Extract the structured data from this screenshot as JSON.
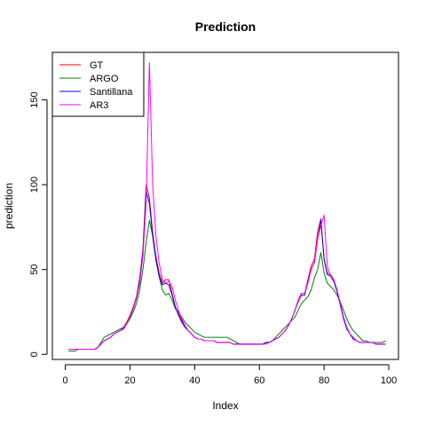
{
  "chart_data": {
    "type": "line",
    "title": "Prediction",
    "xlabel": "Index",
    "ylabel": "prediction",
    "xlim": [
      -4,
      103
    ],
    "ylim": [
      -3,
      178
    ],
    "xticks": [
      0,
      20,
      40,
      60,
      80,
      100
    ],
    "yticks": [
      0,
      50,
      100,
      150
    ],
    "legend": "top-left",
    "x": [
      1,
      2,
      3,
      4,
      5,
      6,
      7,
      8,
      9,
      10,
      11,
      12,
      13,
      14,
      15,
      16,
      17,
      18,
      19,
      20,
      21,
      22,
      23,
      24,
      25,
      26,
      27,
      28,
      29,
      30,
      31,
      32,
      33,
      34,
      35,
      36,
      37,
      38,
      39,
      40,
      41,
      42,
      43,
      44,
      45,
      46,
      47,
      48,
      49,
      50,
      51,
      52,
      53,
      54,
      55,
      56,
      57,
      58,
      59,
      60,
      61,
      62,
      63,
      64,
      65,
      66,
      67,
      68,
      69,
      70,
      71,
      72,
      73,
      74,
      75,
      76,
      77,
      78,
      79,
      80,
      81,
      82,
      83,
      84,
      85,
      86,
      87,
      88,
      89,
      90,
      91,
      92,
      93,
      94,
      95,
      96,
      97,
      98,
      99
    ],
    "series": [
      {
        "name": "GT",
        "color": "#ff0000",
        "values": [
          3,
          3,
          3,
          3,
          3,
          3,
          3,
          3,
          3,
          4,
          6,
          8,
          9,
          10,
          12,
          13,
          14,
          16,
          19,
          23,
          28,
          34,
          45,
          62,
          100,
          92,
          72,
          58,
          48,
          42,
          44,
          44,
          36,
          28,
          24,
          20,
          16,
          14,
          12,
          10,
          9,
          9,
          8,
          8,
          8,
          8,
          7,
          7,
          7,
          7,
          7,
          6,
          6,
          6,
          6,
          6,
          6,
          6,
          6,
          6,
          6,
          7,
          7,
          8,
          9,
          10,
          12,
          14,
          17,
          21,
          26,
          32,
          36,
          36,
          44,
          52,
          56,
          72,
          80,
          56,
          48,
          47,
          44,
          38,
          30,
          22,
          16,
          12,
          10,
          8,
          7,
          7,
          7,
          7,
          7,
          6,
          6,
          6,
          6
        ]
      },
      {
        "name": "ARGO",
        "color": "#008000",
        "values": [
          2,
          2,
          2,
          3,
          3,
          3,
          3,
          3,
          3,
          4,
          7,
          10,
          11,
          12,
          13,
          14,
          15,
          16,
          18,
          21,
          25,
          30,
          38,
          50,
          66,
          79,
          70,
          56,
          46,
          38,
          35,
          36,
          32,
          27,
          25,
          22,
          19,
          17,
          15,
          13,
          12,
          11,
          10,
          10,
          10,
          10,
          10,
          10,
          10,
          10,
          9,
          8,
          7,
          6,
          6,
          6,
          6,
          6,
          6,
          6,
          6,
          7,
          7,
          8,
          10,
          12,
          14,
          16,
          18,
          20,
          22,
          26,
          30,
          32,
          34,
          38,
          45,
          50,
          60,
          48,
          42,
          40,
          38,
          35,
          31,
          26,
          21,
          17,
          14,
          12,
          10,
          8,
          8,
          7,
          7,
          7,
          7,
          7,
          8
        ]
      },
      {
        "name": "Santillana",
        "color": "#0000ff",
        "values": [
          3,
          3,
          3,
          3,
          3,
          3,
          3,
          3,
          3,
          4,
          6,
          8,
          9,
          10,
          12,
          13,
          14,
          15,
          18,
          22,
          27,
          33,
          44,
          60,
          96,
          89,
          70,
          56,
          46,
          41,
          42,
          41,
          35,
          28,
          23,
          19,
          16,
          14,
          12,
          10,
          9,
          9,
          8,
          8,
          8,
          8,
          7,
          7,
          7,
          7,
          7,
          6,
          6,
          6,
          6,
          6,
          6,
          6,
          6,
          6,
          6,
          7,
          7,
          8,
          9,
          10,
          12,
          14,
          17,
          21,
          26,
          31,
          35,
          35,
          43,
          50,
          54,
          68,
          79,
          56,
          47,
          46,
          43,
          37,
          29,
          21,
          15,
          12,
          9,
          8,
          7,
          7,
          7,
          7,
          7,
          6,
          6,
          6,
          6
        ]
      },
      {
        "name": "AR3",
        "color": "#ff00ff",
        "values": [
          3,
          3,
          3,
          3,
          3,
          3,
          3,
          3,
          3,
          4,
          6,
          8,
          9,
          10,
          12,
          13,
          14,
          16,
          18,
          22,
          27,
          33,
          42,
          58,
          90,
          172,
          100,
          70,
          54,
          44,
          42,
          43,
          40,
          32,
          26,
          21,
          17,
          14,
          12,
          10,
          9,
          9,
          8,
          8,
          8,
          8,
          7,
          7,
          7,
          7,
          7,
          6,
          6,
          6,
          6,
          6,
          6,
          6,
          6,
          6,
          6,
          6,
          7,
          8,
          9,
          10,
          12,
          14,
          17,
          21,
          26,
          31,
          36,
          36,
          42,
          50,
          54,
          68,
          76,
          82,
          52,
          46,
          44,
          38,
          30,
          22,
          16,
          12,
          10,
          8,
          7,
          7,
          7,
          7,
          7,
          6,
          6,
          6,
          6
        ]
      }
    ]
  }
}
